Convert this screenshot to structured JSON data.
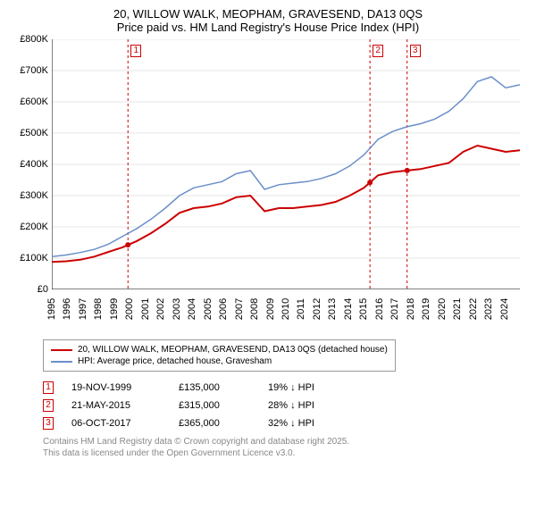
{
  "title": "20, WILLOW WALK, MEOPHAM, GRAVESEND, DA13 0QS",
  "subtitle": "Price paid vs. HM Land Registry's House Price Index (HPI)",
  "chart": {
    "type": "line",
    "background_color": "#ffffff",
    "grid_color": "#cccccc",
    "xlim": [
      1995,
      2025
    ],
    "ylim": [
      0,
      800000
    ],
    "ytick_step": 100000,
    "yticks": [
      "£0",
      "£100K",
      "£200K",
      "£300K",
      "£400K",
      "£500K",
      "£600K",
      "£700K",
      "£800K"
    ],
    "xticks": [
      "1995",
      "1996",
      "1997",
      "1998",
      "1999",
      "2000",
      "2001",
      "2002",
      "2003",
      "2004",
      "2005",
      "2006",
      "2007",
      "2008",
      "2009",
      "2010",
      "2011",
      "2012",
      "2013",
      "2014",
      "2015",
      "2016",
      "2017",
      "2018",
      "2019",
      "2020",
      "2021",
      "2022",
      "2023",
      "2024"
    ],
    "label_fontsize": 11,
    "series": [
      {
        "name": "property",
        "label": "20, WILLOW WALK, MEOPHAM, GRAVESEND, DA13 0QS (detached house)",
        "color": "#cc0000",
        "line_width": 2,
        "y": [
          88,
          90,
          95,
          105,
          120,
          135,
          155,
          180,
          210,
          245,
          260,
          265,
          275,
          295,
          300,
          250,
          260,
          260,
          265,
          270,
          280,
          300,
          325,
          365,
          375,
          380,
          385,
          395,
          405,
          440,
          460,
          450,
          440,
          445
        ]
      },
      {
        "name": "hpi",
        "label": "HPI: Average price, detached house, Gravesham",
        "color": "#6b8fc9",
        "line_width": 1.5,
        "y": [
          105,
          110,
          118,
          128,
          145,
          170,
          195,
          225,
          260,
          300,
          325,
          335,
          345,
          370,
          380,
          320,
          335,
          340,
          345,
          355,
          370,
          395,
          430,
          480,
          505,
          520,
          530,
          545,
          570,
          610,
          665,
          680,
          645,
          655
        ]
      }
    ],
    "vlines": [
      {
        "year": 1999.88,
        "color": "#cc0000",
        "dash": "3,3"
      },
      {
        "year": 2015.39,
        "color": "#cc0000",
        "dash": "3,3"
      },
      {
        "year": 2017.77,
        "color": "#cc0000",
        "dash": "3,3"
      }
    ],
    "markers": [
      {
        "n": "1",
        "year": 1999.88
      },
      {
        "n": "2",
        "year": 2015.39
      },
      {
        "n": "3",
        "year": 2017.77
      }
    ]
  },
  "legend": {
    "series1_label": "20, WILLOW WALK, MEOPHAM, GRAVESEND, DA13 0QS (detached house)",
    "series2_label": "HPI: Average price, detached house, Gravesham"
  },
  "transactions": [
    {
      "n": "1",
      "date": "19-NOV-1999",
      "price": "£135,000",
      "delta": "19% ↓ HPI"
    },
    {
      "n": "2",
      "date": "21-MAY-2015",
      "price": "£315,000",
      "delta": "28% ↓ HPI"
    },
    {
      "n": "3",
      "date": "06-OCT-2017",
      "price": "£365,000",
      "delta": "32% ↓ HPI"
    }
  ],
  "footer": {
    "line1": "Contains HM Land Registry data © Crown copyright and database right 2025.",
    "line2": "This data is licensed under the Open Government Licence v3.0."
  }
}
